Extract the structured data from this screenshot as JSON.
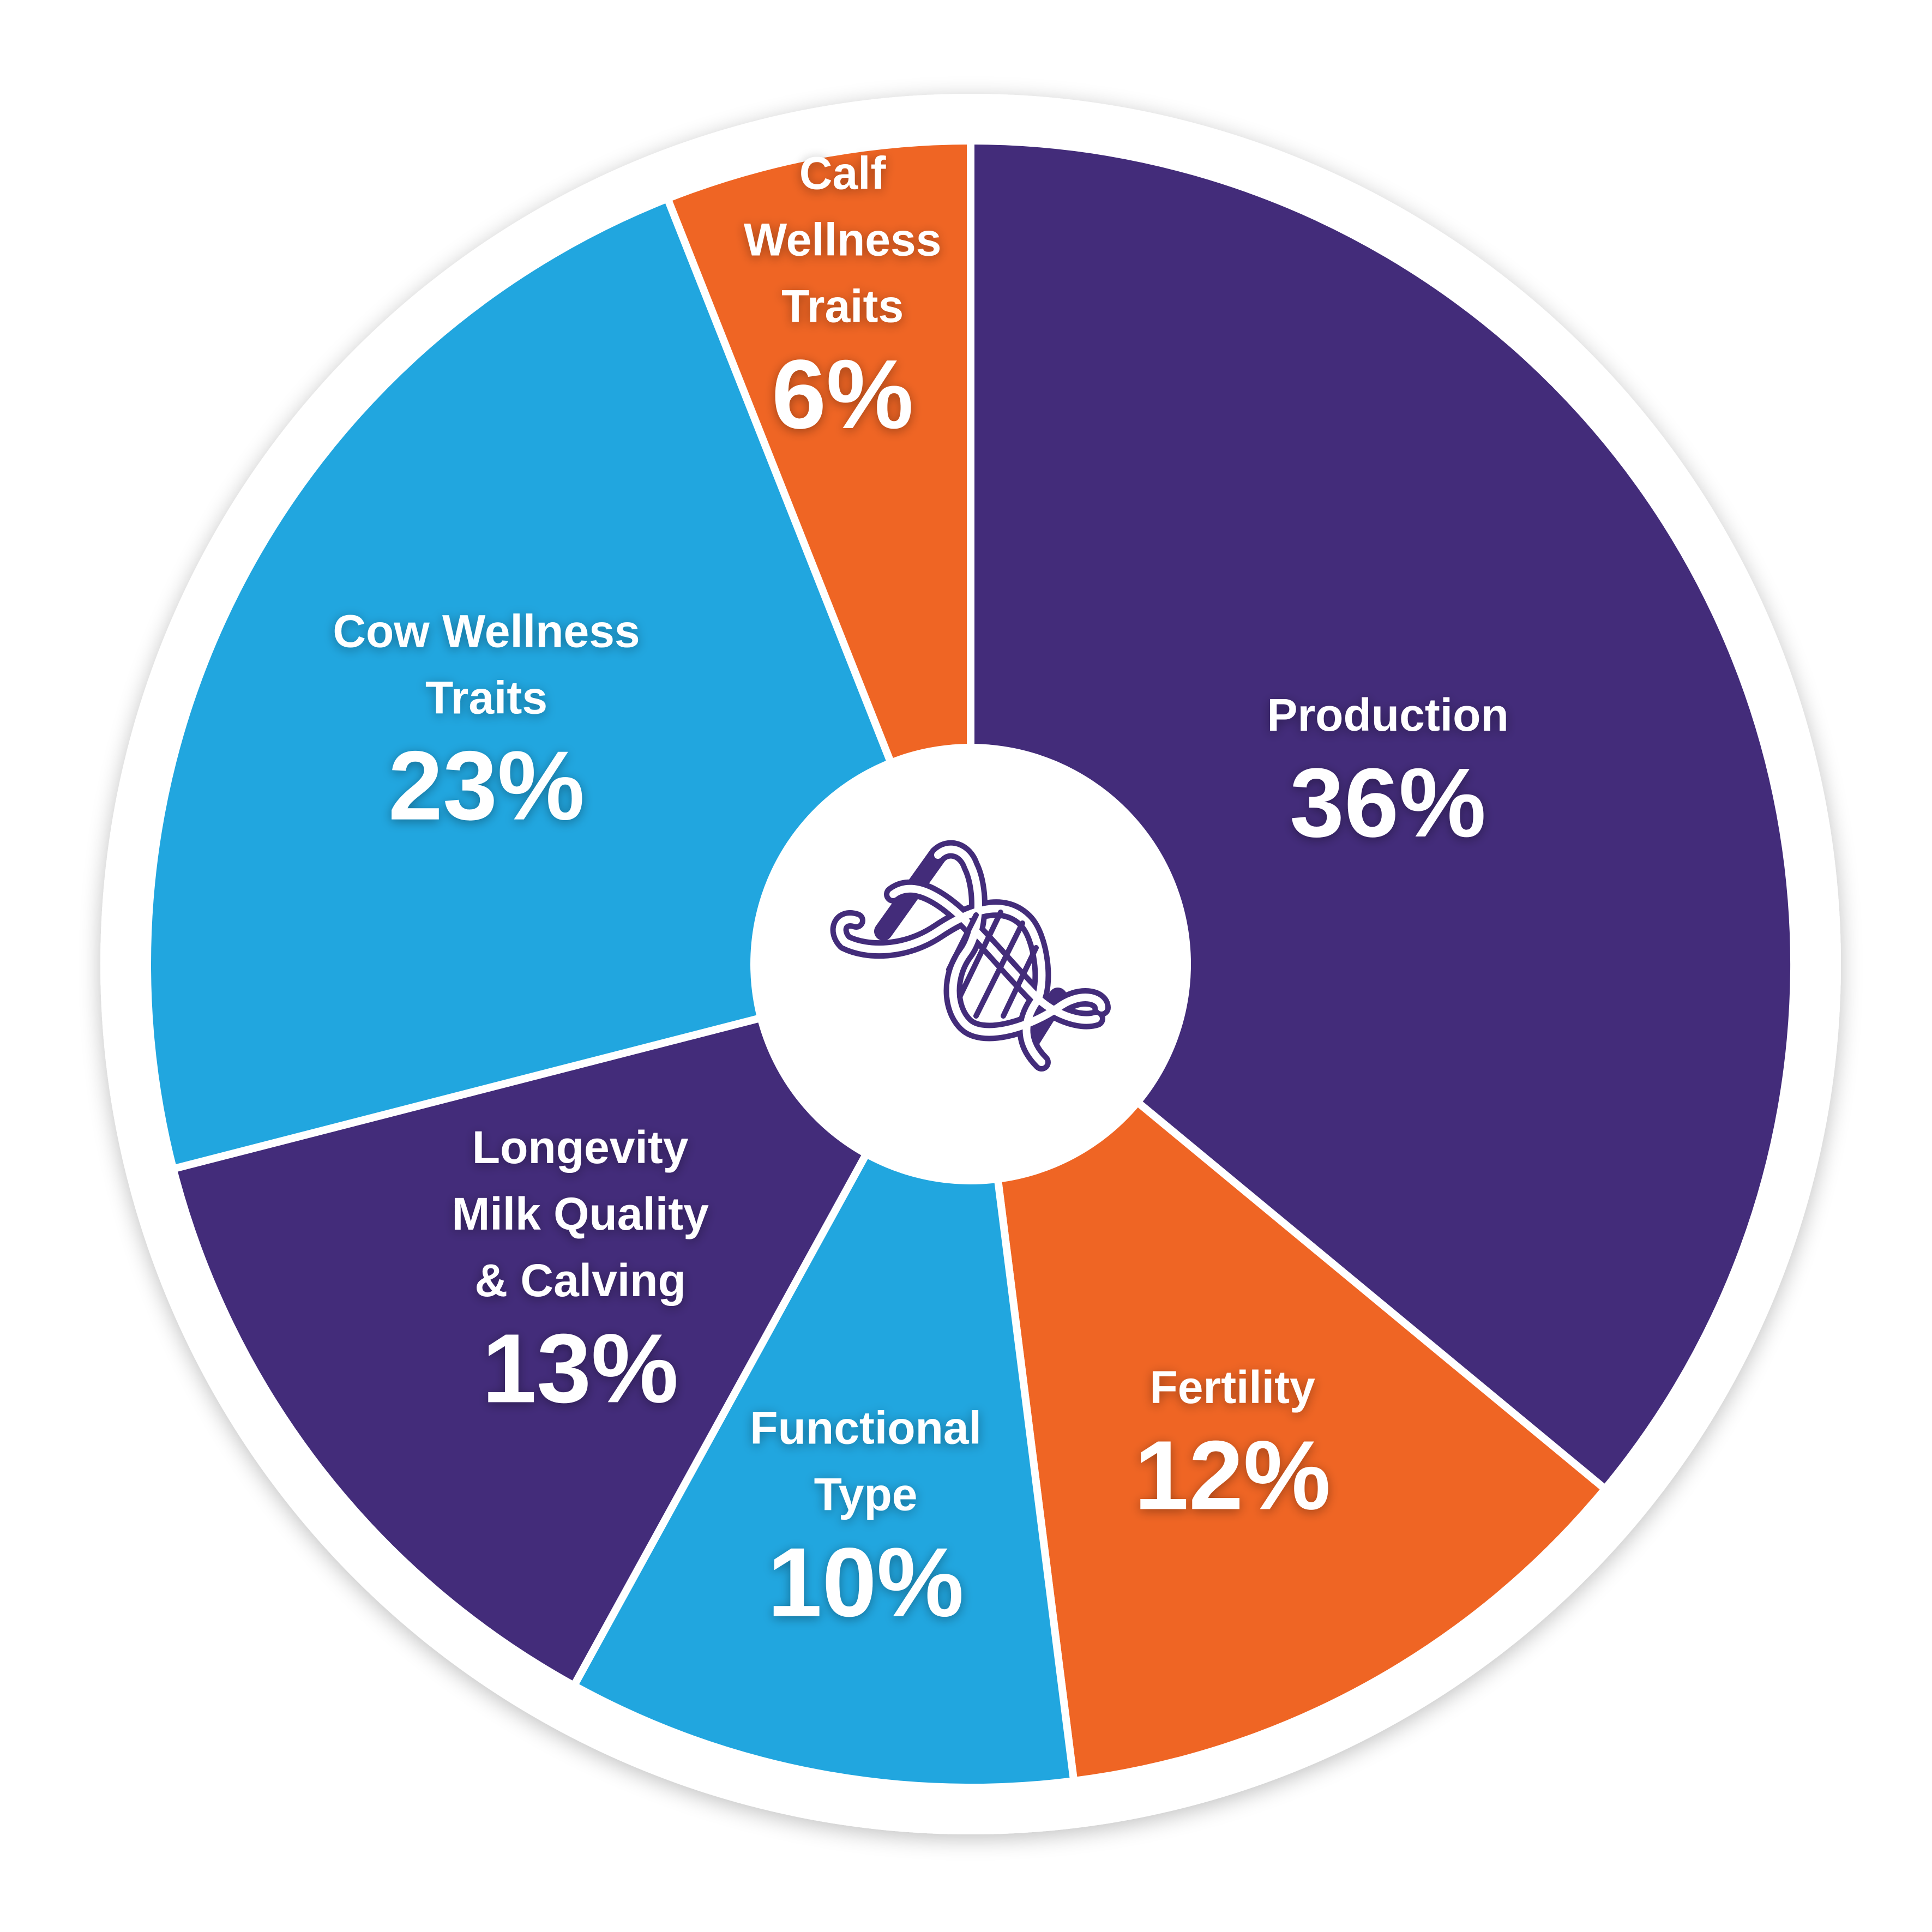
{
  "chart_data": {
    "type": "pie",
    "variant": "donut",
    "start_angle_deg": 0,
    "direction": "clockwise",
    "slices": [
      {
        "label_lines": [
          "Production"
        ],
        "value": 36,
        "value_label": "36%",
        "color": "#432C7A"
      },
      {
        "label_lines": [
          "Fertility"
        ],
        "value": 12,
        "value_label": "12%",
        "color": "#EF6524"
      },
      {
        "label_lines": [
          "Functional",
          "Type"
        ],
        "value": 10,
        "value_label": "10%",
        "color": "#21A6DF"
      },
      {
        "label_lines": [
          "Longevity",
          "Milk Quality",
          "& Calving"
        ],
        "value": 13,
        "value_label": "13%",
        "color": "#432C7A"
      },
      {
        "label_lines": [
          "Cow Wellness",
          "Traits"
        ],
        "value": 23,
        "value_label": "23%",
        "color": "#21A6DF"
      },
      {
        "label_lines": [
          "Calf",
          "Wellness",
          "Traits"
        ],
        "value": 6,
        "value_label": "6%",
        "color": "#EF6524"
      }
    ],
    "center_icon": "dna-helix-icon",
    "center_icon_color": "#432C7A",
    "ring_color": "#FFFFFF"
  }
}
